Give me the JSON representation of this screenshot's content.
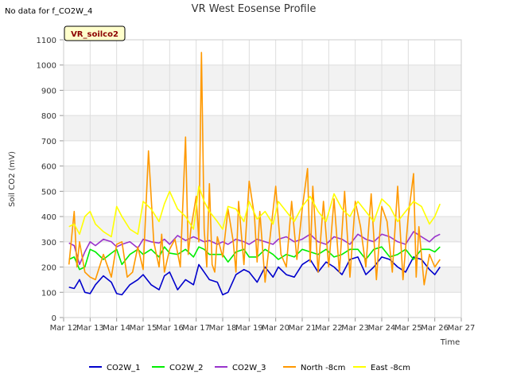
{
  "chart_data": {
    "type": "line",
    "title": "VR West Eosense Profile",
    "no_data_note": "No data for f_CO2W_4",
    "badge_label": "VR_soilco2",
    "xlabel": "Time",
    "ylabel": "Soil CO2 (mV)",
    "ylim": [
      0,
      1100
    ],
    "yticks": [
      0,
      100,
      200,
      300,
      400,
      500,
      600,
      700,
      800,
      900,
      1000,
      1100
    ],
    "xlim": [
      12,
      27
    ],
    "xtick_values": [
      12,
      13,
      14,
      15,
      16,
      17,
      18,
      19,
      20,
      21,
      22,
      23,
      24,
      25,
      26,
      27
    ],
    "xtick_labels": [
      "Mar 12",
      "Mar 13",
      "Mar 14",
      "Mar 15",
      "Mar 16",
      "Mar 17",
      "Mar 18",
      "Mar 19",
      "Mar 20",
      "Mar 21",
      "Mar 22",
      "Mar 23",
      "Mar 24",
      "Mar 25",
      "Mar 26",
      "Mar 27"
    ],
    "grid": true,
    "legend_position": "bottom",
    "series": [
      {
        "name": "CO2W_1",
        "color": "#0000cc",
        "x": [
          12.2,
          12.4,
          12.6,
          12.8,
          13.0,
          13.2,
          13.5,
          13.8,
          14.0,
          14.2,
          14.5,
          14.8,
          15.0,
          15.3,
          15.6,
          15.8,
          16.0,
          16.3,
          16.6,
          16.9,
          17.1,
          17.3,
          17.5,
          17.8,
          18.0,
          18.2,
          18.5,
          18.8,
          19.0,
          19.3,
          19.6,
          19.9,
          20.1,
          20.4,
          20.7,
          21.0,
          21.3,
          21.6,
          21.9,
          22.2,
          22.5,
          22.8,
          23.1,
          23.4,
          23.7,
          24.0,
          24.3,
          24.6,
          24.9,
          25.2,
          25.5,
          25.8,
          26.0,
          26.2
        ],
        "y": [
          120,
          115,
          150,
          100,
          95,
          130,
          165,
          140,
          95,
          90,
          130,
          150,
          170,
          130,
          110,
          165,
          180,
          110,
          150,
          130,
          210,
          180,
          150,
          140,
          90,
          100,
          170,
          190,
          180,
          140,
          200,
          160,
          200,
          170,
          160,
          210,
          230,
          180,
          220,
          200,
          170,
          230,
          240,
          170,
          200,
          240,
          230,
          200,
          180,
          240,
          230,
          190,
          170,
          200
        ]
      },
      {
        "name": "CO2W_2",
        "color": "#00ee00",
        "x": [
          12.2,
          12.4,
          12.6,
          12.8,
          13.0,
          13.2,
          13.5,
          13.8,
          14.0,
          14.2,
          14.5,
          14.8,
          15.0,
          15.3,
          15.6,
          15.8,
          16.0,
          16.3,
          16.6,
          16.9,
          17.1,
          17.3,
          17.5,
          17.8,
          18.0,
          18.2,
          18.5,
          18.8,
          19.0,
          19.3,
          19.6,
          19.9,
          20.1,
          20.4,
          20.7,
          21.0,
          21.3,
          21.6,
          21.9,
          22.2,
          22.5,
          22.8,
          23.1,
          23.4,
          23.7,
          24.0,
          24.3,
          24.6,
          24.9,
          25.2,
          25.5,
          25.8,
          26.0,
          26.2
        ],
        "y": [
          230,
          240,
          190,
          200,
          270,
          260,
          230,
          255,
          270,
          210,
          250,
          270,
          250,
          270,
          240,
          280,
          255,
          250,
          270,
          240,
          280,
          270,
          250,
          250,
          250,
          220,
          260,
          270,
          240,
          240,
          270,
          250,
          230,
          250,
          240,
          270,
          260,
          250,
          270,
          240,
          250,
          270,
          270,
          230,
          270,
          280,
          240,
          250,
          270,
          230,
          270,
          270,
          260,
          280
        ]
      },
      {
        "name": "CO2W_3",
        "color": "#9933cc",
        "x": [
          12.2,
          12.4,
          12.6,
          12.8,
          13.0,
          13.2,
          13.5,
          13.8,
          14.0,
          14.2,
          14.5,
          14.8,
          15.0,
          15.3,
          15.6,
          15.8,
          16.0,
          16.3,
          16.6,
          16.9,
          17.1,
          17.3,
          17.5,
          17.8,
          18.0,
          18.2,
          18.5,
          18.8,
          19.0,
          19.3,
          19.6,
          19.9,
          20.1,
          20.4,
          20.7,
          21.0,
          21.3,
          21.6,
          21.9,
          22.2,
          22.5,
          22.8,
          23.1,
          23.4,
          23.7,
          24.0,
          24.3,
          24.6,
          24.9,
          25.2,
          25.5,
          25.8,
          26.0,
          26.2
        ],
        "y": [
          295,
          285,
          210,
          260,
          300,
          285,
          310,
          300,
          280,
          290,
          300,
          275,
          310,
          300,
          295,
          310,
          290,
          325,
          305,
          320,
          310,
          300,
          305,
          290,
          300,
          290,
          310,
          300,
          290,
          310,
          300,
          290,
          310,
          320,
          300,
          310,
          330,
          300,
          290,
          320,
          310,
          290,
          330,
          310,
          300,
          330,
          320,
          300,
          290,
          340,
          320,
          300,
          320,
          330
        ]
      },
      {
        "name": "North -8cm",
        "color": "#ff9900",
        "x": [
          12.2,
          12.4,
          12.5,
          12.6,
          12.8,
          13.0,
          13.2,
          13.5,
          13.8,
          14.0,
          14.2,
          14.4,
          14.6,
          14.8,
          15.0,
          15.2,
          15.4,
          15.6,
          15.7,
          15.8,
          16.0,
          16.2,
          16.4,
          16.6,
          16.7,
          16.8,
          17.0,
          17.1,
          17.2,
          17.3,
          17.4,
          17.5,
          17.6,
          17.7,
          17.8,
          18.0,
          18.2,
          18.4,
          18.5,
          18.6,
          18.8,
          19.0,
          19.2,
          19.3,
          19.4,
          19.6,
          19.8,
          20.0,
          20.2,
          20.4,
          20.6,
          20.8,
          21.0,
          21.2,
          21.3,
          21.4,
          21.6,
          21.8,
          22.0,
          22.2,
          22.4,
          22.6,
          22.8,
          23.0,
          23.2,
          23.4,
          23.6,
          23.8,
          24.0,
          24.2,
          24.4,
          24.6,
          24.8,
          25.0,
          25.2,
          25.3,
          25.4,
          25.6,
          25.8,
          26.0,
          26.2
        ],
        "y": [
          210,
          420,
          200,
          300,
          180,
          160,
          150,
          250,
          160,
          290,
          300,
          160,
          180,
          280,
          190,
          660,
          300,
          200,
          330,
          180,
          270,
          310,
          200,
          715,
          250,
          350,
          480,
          300,
          1050,
          350,
          200,
          530,
          210,
          180,
          320,
          240,
          430,
          300,
          180,
          460,
          210,
          540,
          400,
          220,
          420,
          140,
          330,
          520,
          250,
          200,
          460,
          230,
          430,
          590,
          220,
          520,
          180,
          460,
          200,
          470,
          180,
          500,
          160,
          460,
          360,
          200,
          490,
          150,
          440,
          380,
          180,
          520,
          150,
          400,
          570,
          160,
          360,
          130,
          250,
          200,
          230
        ]
      },
      {
        "name": "East -8cm",
        "color": "#ffff00",
        "x": [
          12.2,
          12.4,
          12.6,
          12.8,
          13.0,
          13.2,
          13.5,
          13.8,
          14.0,
          14.2,
          14.5,
          14.8,
          15.0,
          15.3,
          15.6,
          15.8,
          16.0,
          16.3,
          16.6,
          16.9,
          17.1,
          17.3,
          17.5,
          17.8,
          18.0,
          18.2,
          18.5,
          18.8,
          19.0,
          19.3,
          19.6,
          19.9,
          20.1,
          20.4,
          20.7,
          21.0,
          21.3,
          21.6,
          21.9,
          22.2,
          22.5,
          22.8,
          23.1,
          23.4,
          23.7,
          24.0,
          24.3,
          24.6,
          24.9,
          25.2,
          25.5,
          25.8,
          26.0,
          26.2
        ],
        "y": [
          360,
          370,
          330,
          400,
          420,
          370,
          340,
          320,
          440,
          400,
          350,
          330,
          460,
          430,
          380,
          450,
          500,
          430,
          400,
          350,
          520,
          460,
          420,
          380,
          350,
          440,
          430,
          380,
          460,
          390,
          420,
          370,
          460,
          420,
          380,
          440,
          480,
          420,
          380,
          490,
          430,
          400,
          460,
          420,
          380,
          470,
          440,
          380,
          420,
          460,
          440,
          370,
          400,
          450
        ]
      }
    ]
  }
}
